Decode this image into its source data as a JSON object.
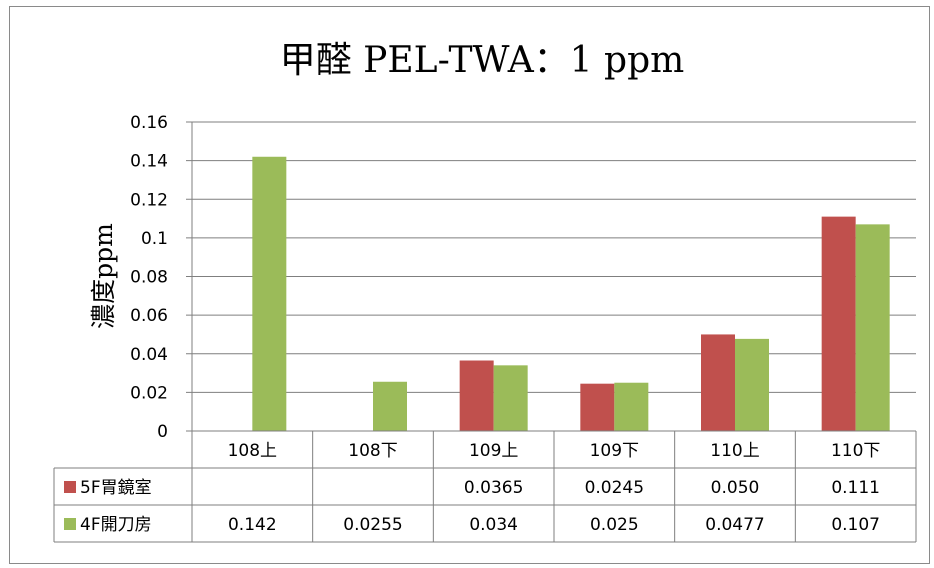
{
  "chart_data": {
    "type": "bar",
    "title": "甲醛 PEL-TWA：1 ppm",
    "ylabel": "濃度ppm",
    "xlabel": "",
    "categories": [
      "108上",
      "108下",
      "109上",
      "109下",
      "110上",
      "110下"
    ],
    "ylim": [
      0,
      0.16
    ],
    "yticks": [
      "0",
      "0.02",
      "0.04",
      "0.06",
      "0.08",
      "0.1",
      "0.12",
      "0.14",
      "0.16"
    ],
    "grid": true,
    "legend": "data-table",
    "series": [
      {
        "name": "5F胃鏡室",
        "color": "#c0504d",
        "values": [
          null,
          null,
          0.0365,
          0.0245,
          0.05,
          0.111
        ],
        "labels": [
          "",
          "",
          "0.0365",
          "0.0245",
          "0.050",
          "0.111"
        ]
      },
      {
        "name": "4F開刀房",
        "color": "#9bbb59",
        "values": [
          0.142,
          0.0255,
          0.034,
          0.025,
          0.0477,
          0.107
        ],
        "labels": [
          "0.142",
          "0.0255",
          "0.034",
          "0.025",
          "0.0477",
          "0.107"
        ]
      }
    ]
  }
}
